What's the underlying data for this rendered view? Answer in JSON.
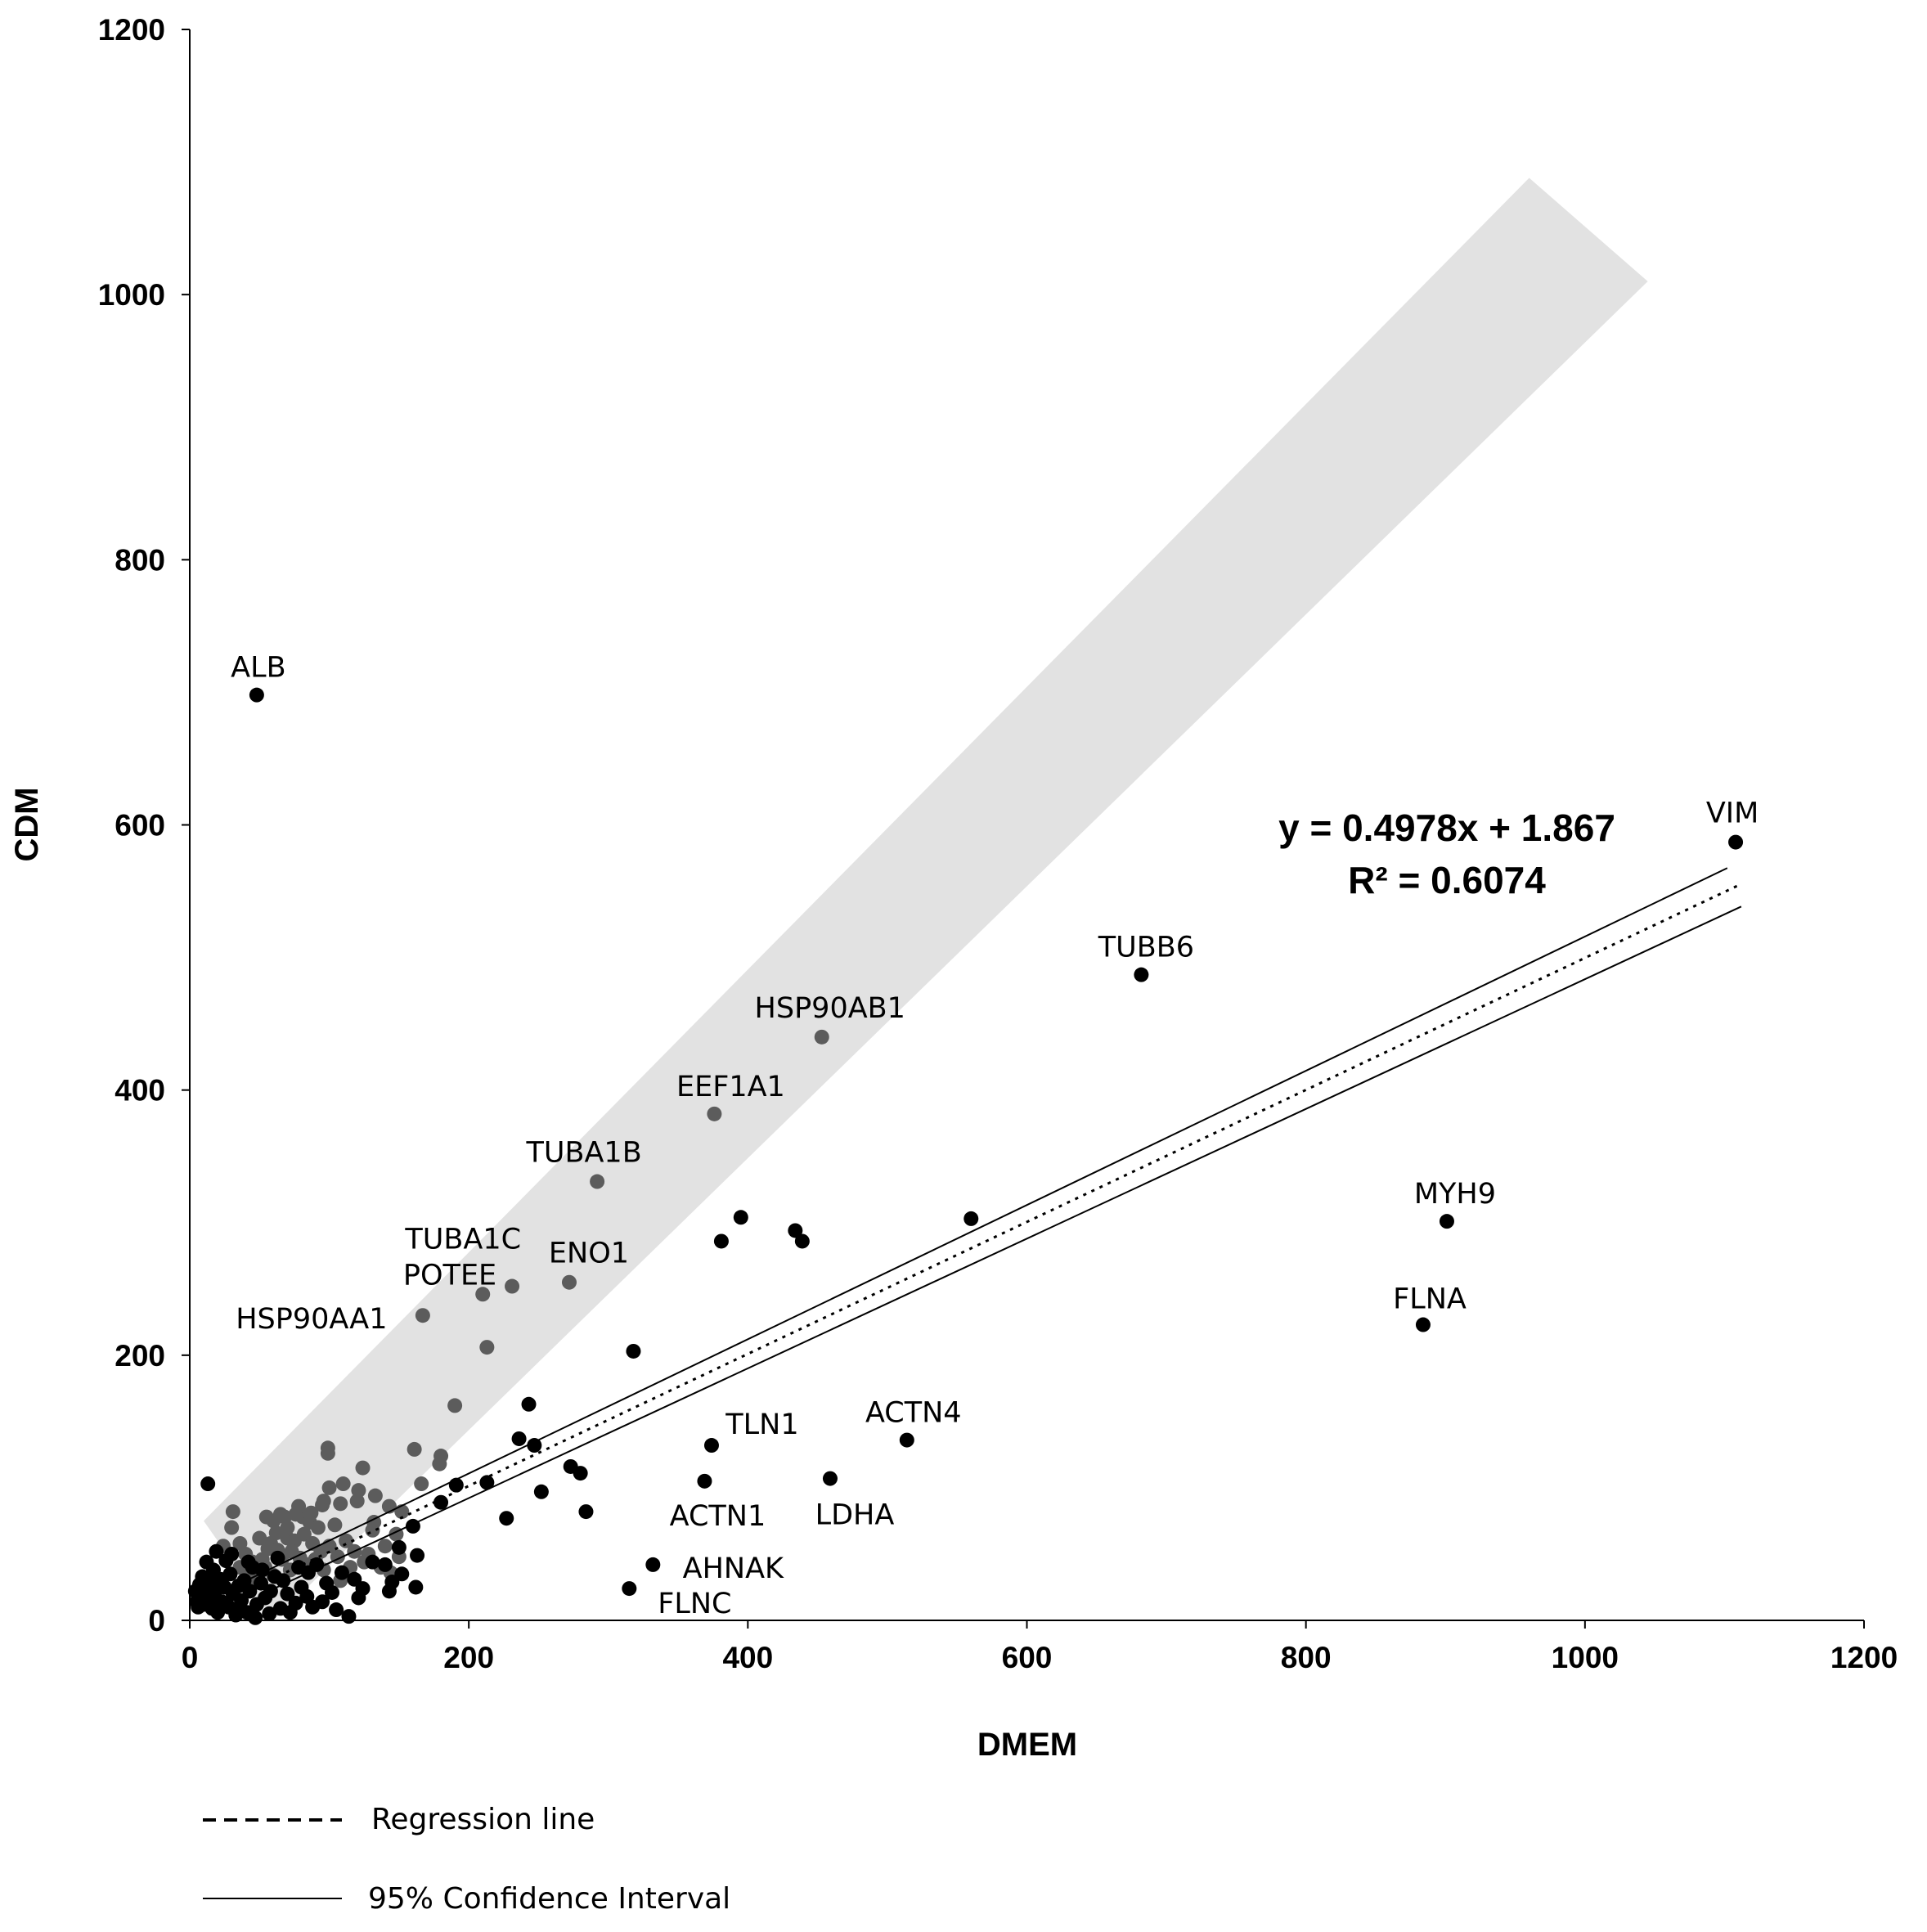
{
  "chart_data": {
    "type": "scatter",
    "title": "",
    "xlabel": "DMEM",
    "ylabel": "CDM",
    "xlim": [
      0,
      1200
    ],
    "ylim": [
      0,
      1200
    ],
    "xticks": [
      "0",
      "200",
      "400",
      "600",
      "800",
      "1000",
      "1200"
    ],
    "yticks": [
      "0",
      "200",
      "400",
      "600",
      "800",
      "1000",
      "1200"
    ],
    "equation": "y = 0.4978x + 1.867",
    "r_squared": "R² = 0.6074",
    "regression": {
      "slope": 0.4978,
      "intercept": 1.867,
      "x_range": [
        0,
        1110
      ]
    },
    "confidence_band": {
      "offset_at_start": 8,
      "offset_at_end": 17
    },
    "highlight_band": {
      "description": "shaded diagonal band",
      "polygon": [
        [
          10,
          75
        ],
        [
          60,
          0
        ],
        [
          1045,
          1010
        ],
        [
          960,
          1088
        ]
      ],
      "color": "#e2e2e2"
    },
    "legend": [
      {
        "label": "Regression line",
        "style": "dashed"
      },
      {
        "label": "95% Confidence Interval",
        "style": "solid"
      }
    ],
    "labeled_points": [
      {
        "label": "ALB",
        "x": 48,
        "y": 698,
        "group": "black"
      },
      {
        "label": "VIM",
        "x": 1108,
        "y": 587,
        "group": "black"
      },
      {
        "label": "TUBB6",
        "x": 682,
        "y": 487,
        "group": "black"
      },
      {
        "label": "HSP90AB1",
        "x": 453,
        "y": 440,
        "group": "gray"
      },
      {
        "label": "EEF1A1",
        "x": 376,
        "y": 382,
        "group": "gray"
      },
      {
        "label": "TUBA1B",
        "x": 292,
        "y": 331,
        "group": "gray"
      },
      {
        "label": "TUBA1C",
        "x": 210,
        "y": 246,
        "group": "gray"
      },
      {
        "label": "ENO1",
        "x": 272,
        "y": 255,
        "group": "gray"
      },
      {
        "label": "POTEE",
        "x": 231,
        "y": 252,
        "group": "gray"
      },
      {
        "label": "HSP90AA1",
        "x": 167,
        "y": 230,
        "group": "gray"
      },
      {
        "label": "MYH9",
        "x": 901,
        "y": 301,
        "group": "black"
      },
      {
        "label": "FLNA",
        "x": 884,
        "y": 223,
        "group": "black"
      },
      {
        "label": "ACTN4",
        "x": 514,
        "y": 136,
        "group": "black"
      },
      {
        "label": "TLN1",
        "x": 374,
        "y": 132,
        "group": "black"
      },
      {
        "label": "LDHA",
        "x": 459,
        "y": 107,
        "group": "black"
      },
      {
        "label": "ACTN1",
        "x": 369,
        "y": 105,
        "group": "black"
      },
      {
        "label": "AHNAK",
        "x": 332,
        "y": 42,
        "group": "black"
      },
      {
        "label": "FLNC",
        "x": 315,
        "y": 24,
        "group": "black"
      }
    ],
    "series": [
      {
        "name": "black points",
        "color": "#000000",
        "points": [
          [
            560,
            303
          ],
          [
            395,
            304
          ],
          [
            381,
            286
          ],
          [
            434,
            294
          ],
          [
            439,
            286
          ],
          [
            318,
            203
          ],
          [
            243,
            163
          ],
          [
            236,
            137
          ],
          [
            247,
            132
          ],
          [
            273,
            116
          ],
          [
            280,
            111
          ],
          [
            252,
            97
          ],
          [
            284,
            82
          ],
          [
            227,
            77
          ],
          [
            213,
            104
          ],
          [
            191,
            102
          ],
          [
            180,
            89
          ],
          [
            163,
            49
          ],
          [
            162,
            25
          ],
          [
            160,
            71
          ],
          [
            150,
            55
          ],
          [
            145,
            29
          ],
          [
            143,
            22
          ],
          [
            152,
            35
          ],
          [
            140,
            42
          ],
          [
            131,
            44
          ],
          [
            124,
            24
          ],
          [
            121,
            17
          ],
          [
            114,
            3
          ],
          [
            105,
            8
          ],
          [
            98,
            28
          ],
          [
            91,
            42
          ],
          [
            85,
            36
          ],
          [
            80,
            25
          ],
          [
            76,
            13
          ],
          [
            70,
            20
          ],
          [
            65,
            9
          ],
          [
            61,
            33
          ],
          [
            57,
            5
          ],
          [
            54,
            17
          ],
          [
            51,
            28
          ],
          [
            48,
            12
          ],
          [
            45,
            40
          ],
          [
            43,
            22
          ],
          [
            41,
            6
          ],
          [
            39,
            30
          ],
          [
            37,
            15
          ],
          [
            35,
            26
          ],
          [
            33,
            4
          ],
          [
            31,
            20
          ],
          [
            29,
            35
          ],
          [
            28,
            10
          ],
          [
            26,
            45
          ],
          [
            25,
            25
          ],
          [
            23,
            14
          ],
          [
            22,
            31
          ],
          [
            20,
            6
          ],
          [
            19,
            52
          ],
          [
            18,
            21
          ],
          [
            17,
            38
          ],
          [
            16,
            9
          ],
          [
            15,
            28
          ],
          [
            14,
            16
          ],
          [
            13,
            103
          ],
          [
            12,
            44
          ],
          [
            11,
            24
          ],
          [
            10,
            12
          ],
          [
            9,
            33
          ],
          [
            8,
            19
          ],
          [
            7,
            27
          ],
          [
            6,
            10
          ],
          [
            5,
            14
          ],
          [
            4,
            22
          ],
          [
            30,
            50
          ],
          [
            36,
            8
          ],
          [
            42,
            44
          ],
          [
            47,
            2
          ],
          [
            52,
            38
          ],
          [
            58,
            22
          ],
          [
            63,
            47
          ],
          [
            67,
            30
          ],
          [
            72,
            6
          ],
          [
            78,
            40
          ],
          [
            84,
            18
          ],
          [
            88,
            10
          ],
          [
            95,
            14
          ],
          [
            102,
            21
          ],
          [
            109,
            36
          ],
          [
            118,
            31
          ]
        ]
      },
      {
        "name": "gray points",
        "color": "#5c5c5c",
        "points": [
          [
            190,
            162
          ],
          [
            213,
            206
          ],
          [
            180,
            124
          ],
          [
            179,
            118
          ],
          [
            161,
            129
          ],
          [
            124,
            115
          ],
          [
            99,
            130
          ],
          [
            99,
            126
          ],
          [
            110,
            103
          ],
          [
            121,
            98
          ],
          [
            133,
            94
          ],
          [
            143,
            86
          ],
          [
            152,
            82
          ],
          [
            166,
            103
          ],
          [
            100,
            100
          ],
          [
            95,
            87
          ],
          [
            120,
            90
          ],
          [
            87,
            81
          ],
          [
            81,
            78
          ],
          [
            76,
            80
          ],
          [
            68,
            78
          ],
          [
            65,
            80
          ],
          [
            60,
            75
          ],
          [
            55,
            78
          ],
          [
            31,
            82
          ],
          [
            30,
            70
          ],
          [
            24,
            56
          ],
          [
            36,
            58
          ],
          [
            40,
            50
          ],
          [
            45,
            44
          ],
          [
            52,
            46
          ],
          [
            58,
            58
          ],
          [
            63,
            53
          ],
          [
            70,
            62
          ],
          [
            75,
            60
          ],
          [
            82,
            65
          ],
          [
            88,
            58
          ],
          [
            94,
            52
          ],
          [
            100,
            56
          ],
          [
            106,
            48
          ],
          [
            112,
            60
          ],
          [
            118,
            52
          ],
          [
            125,
            44
          ],
          [
            131,
            68
          ],
          [
            137,
            40
          ],
          [
            144,
            36
          ],
          [
            104,
            72
          ],
          [
            86,
            74
          ],
          [
            92,
            70
          ],
          [
            73,
            52
          ],
          [
            66,
            46
          ],
          [
            54,
            40
          ],
          [
            48,
            36
          ],
          [
            42,
            38
          ],
          [
            36,
            40
          ],
          [
            62,
            66
          ],
          [
            70,
            70
          ],
          [
            79,
            47
          ],
          [
            84,
            42
          ],
          [
            96,
            38
          ],
          [
            108,
            30
          ],
          [
            115,
            40
          ],
          [
            128,
            50
          ],
          [
            140,
            56
          ],
          [
            150,
            48
          ],
          [
            96,
            90
          ],
          [
            132,
            74
          ],
          [
            148,
            65
          ],
          [
            78,
            86
          ],
          [
            56,
            54
          ],
          [
            50,
            62
          ],
          [
            44,
            28
          ],
          [
            60,
            34
          ],
          [
            72,
            38
          ],
          [
            90,
            46
          ],
          [
            108,
            88
          ]
        ]
      }
    ]
  }
}
